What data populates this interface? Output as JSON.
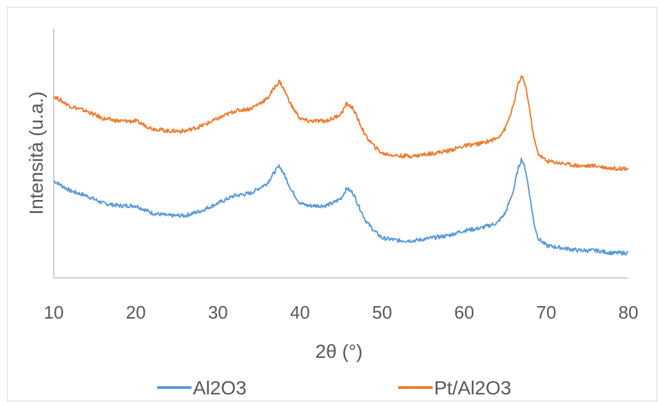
{
  "chart_data": {
    "type": "line",
    "title": "",
    "xlabel": "2θ (°)",
    "ylabel": "Intensità (u.a.)",
    "xlim": [
      10,
      80
    ],
    "ylim": [
      0,
      100
    ],
    "x_ticks": [
      "10",
      "20",
      "30",
      "40",
      "50",
      "60",
      "70",
      "80"
    ],
    "grid": false,
    "legend_position": "bottom",
    "series": [
      {
        "name": "Al2O3",
        "color": "#5b9bd5",
        "x": [
          10,
          12,
          14,
          16,
          18,
          20,
          22,
          24,
          26,
          28,
          30,
          32,
          34,
          35,
          36,
          37,
          37.5,
          38,
          39,
          40,
          41,
          42,
          43,
          44,
          45,
          45.7,
          46.5,
          47,
          48,
          49,
          50,
          52,
          54,
          56,
          58,
          60,
          62,
          63,
          64,
          65,
          66,
          66.5,
          67,
          67.5,
          68,
          68.5,
          69,
          70,
          72,
          74,
          76,
          78,
          80
        ],
        "y": [
          39,
          35,
          33,
          30,
          29,
          29,
          26,
          25,
          25,
          27,
          30,
          33,
          34,
          36,
          38,
          43,
          45,
          42,
          35,
          30,
          29,
          29,
          29,
          30,
          32,
          36,
          34,
          30,
          23,
          19,
          16,
          15,
          15,
          16,
          17,
          19,
          20,
          21,
          22,
          26,
          35,
          43,
          48,
          43,
          33,
          22,
          16,
          13,
          12,
          11,
          11,
          10,
          10
        ]
      },
      {
        "name": "Pt/Al2O3",
        "color": "#ed7d31",
        "x": [
          10,
          12,
          14,
          16,
          18,
          20,
          22,
          24,
          26,
          28,
          30,
          32,
          34,
          35,
          36,
          37,
          37.5,
          38,
          39,
          40,
          41,
          42,
          43,
          44,
          45,
          45.7,
          46.5,
          47,
          48,
          49,
          50,
          52,
          54,
          56,
          58,
          60,
          62,
          63,
          64,
          65,
          66,
          66.5,
          67,
          67.5,
          68,
          68.5,
          69,
          70,
          72,
          74,
          76,
          78,
          80
        ],
        "y": [
          73,
          69,
          67,
          64,
          63,
          63,
          60,
          59,
          59,
          61,
          64,
          67,
          68,
          70,
          72,
          77,
          79,
          76,
          69,
          64,
          63,
          63,
          63,
          64,
          66,
          70,
          68,
          64,
          57,
          53,
          50,
          49,
          49,
          50,
          51,
          53,
          54,
          55,
          56,
          60,
          69,
          77,
          81,
          77,
          67,
          56,
          50,
          47,
          46,
          45,
          45,
          44,
          44
        ]
      }
    ]
  }
}
